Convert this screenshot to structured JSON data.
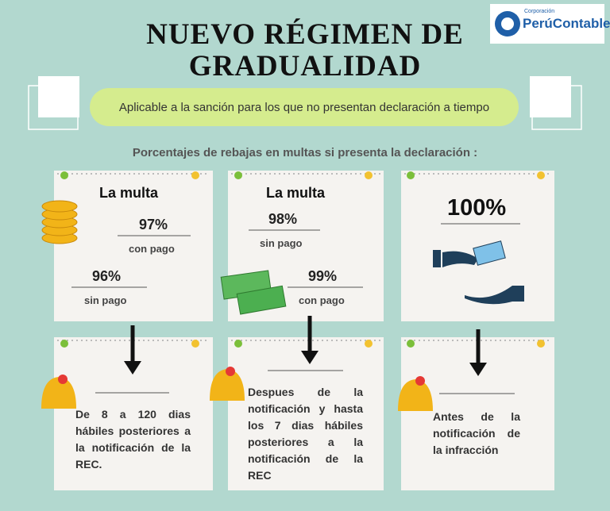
{
  "header": {
    "title_lines": [
      "NUEVO RÉGIMEN DE",
      "GRADUALIDAD"
    ],
    "subtitle": "Aplicable a la sanción para los que no presentan declaración a tiempo",
    "logo": {
      "small": "Corporación",
      "name": "PerúContable"
    }
  },
  "intro": "Porcentajes de rebajas en multas si presenta la declaración :",
  "cards": [
    {
      "heading": "La multa",
      "items": [
        {
          "value": "97%",
          "label": "con pago"
        },
        {
          "value": "96%",
          "label": "sin pago"
        }
      ]
    },
    {
      "heading": "La multa",
      "items": [
        {
          "value": "98%",
          "label": "sin pago"
        },
        {
          "value": "99%",
          "label": "con pago"
        }
      ]
    },
    {
      "items": [
        {
          "value": "100%"
        }
      ]
    }
  ],
  "notes": [
    "De 8 a 120 dias hábiles posteriores a la notificación de la REC.",
    "Despues de la notificación y hasta los 7 dias hábiles posteriores a la notificación de la REC",
    "Antes de la notificación de la infracción"
  ]
}
